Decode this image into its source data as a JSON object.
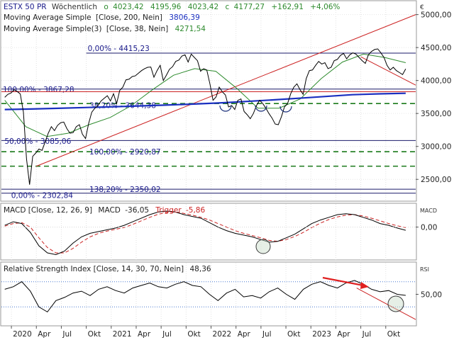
{
  "chart_data": [
    {
      "type": "line",
      "panel": "price",
      "title": "ESTX 50 PR",
      "interval": "Wöchentlich",
      "ohlc": {
        "o_label": "o",
        "o": "4023,42",
        "h": "4195,96",
        "l": "4023,42",
        "c_label": "c",
        "c": "4177,27",
        "change": "+162,91",
        "change_pct": "+4,06%"
      },
      "currency": "€",
      "y_ticks": [
        "5000,00",
        "4500,00",
        "4000,00",
        "3500,00",
        "3000,00",
        "2500,00"
      ],
      "y_tick_values": [
        5000,
        4500,
        4000,
        3500,
        3000,
        2500
      ],
      "ylim": [
        2180,
        5200
      ],
      "x_ticks": [
        "2020",
        "Apr",
        "Jul",
        "Okt",
        "2021",
        "Apr",
        "Jul",
        "Okt",
        "2022",
        "Apr",
        "Jul",
        "Okt",
        "2023",
        "Apr",
        "Jul",
        "Okt"
      ],
      "x_tick_positions": [
        0,
        3,
        6,
        9,
        12,
        15,
        18,
        21,
        24,
        27,
        30,
        33,
        36,
        39,
        42,
        45
      ],
      "xlim": [
        -1.2,
        48.6
      ],
      "series": [
        {
          "name": "ESTX 50 PR",
          "color": "#000000",
          "values": [
            3745,
            3790,
            3810,
            3860,
            3835,
            3795,
            3520,
            2810,
            2420,
            2850,
            2900,
            2960,
            2940,
            3070,
            3200,
            3300,
            3240,
            3320,
            3360,
            3370,
            3270,
            3200,
            3210,
            3300,
            3330,
            3185,
            3120,
            3350,
            3520,
            3580,
            3620,
            3690,
            3730,
            3770,
            3690,
            3800,
            3650,
            3850,
            3900,
            4010,
            4020,
            4060,
            4070,
            4110,
            4150,
            4180,
            4200,
            4205,
            4050,
            4150,
            4230,
            4000,
            4080,
            4170,
            4210,
            4290,
            4310,
            4370,
            4390,
            4280,
            4400,
            4350,
            4300,
            4140,
            4180,
            4160,
            3950,
            3700,
            3750,
            3900,
            3830,
            3780,
            3600,
            3620,
            3560,
            3700,
            3720,
            3530,
            3480,
            3420,
            3500,
            3620,
            3700,
            3650,
            3580,
            3500,
            3430,
            3340,
            3330,
            3450,
            3600,
            3650,
            3800,
            3900,
            3950,
            3860,
            3790,
            4030,
            4150,
            4160,
            4230,
            4290,
            4250,
            4270,
            4180,
            4200,
            4300,
            4320,
            4380,
            4410,
            4330,
            4390,
            4420,
            4400,
            4350,
            4300,
            4260,
            4390,
            4440,
            4470,
            4480,
            4420,
            4350,
            4230,
            4160,
            4200,
            4150,
            4120,
            4090,
            4177
          ]
        },
        {
          "name": "Moving Average Simple",
          "params": "[Close, 200, Nein]",
          "value": "3806,39",
          "color": "#1a2fc0",
          "values": [
            3560,
            3568,
            3578,
            3590,
            3601,
            3614,
            3627,
            3642,
            3659,
            3681,
            3705,
            3731,
            3758,
            3785,
            3798,
            3806
          ]
        },
        {
          "name": "Moving Average Simple(3)",
          "params": "[Close, 38, Nein]",
          "value": "4271,54",
          "color": "#2e8b2e",
          "values": [
            3700,
            3300,
            3150,
            3200,
            3330,
            3440,
            3620,
            3860,
            4080,
            4180,
            4140,
            3880,
            3580,
            3580,
            3720,
            4030,
            4280,
            4400,
            4350,
            4270
          ]
        }
      ],
      "levels": [
        {
          "label": "0,00% - 4415,23",
          "value": 4415.23
        },
        {
          "label": "100,00% - 3867,28",
          "value": 3867.28
        },
        {
          "label": "38,20% - 3644,38",
          "value": 3644.38
        },
        {
          "label": "50,00% - 3085,06",
          "value": 3085.06
        },
        {
          "label": "100,00% - 2920,87",
          "value": 2920.87
        },
        {
          "label": "0,00% - 2302,84",
          "value": 2302.84
        },
        {
          "label": "138,20% - 2350,02",
          "value": 2350.02
        }
      ],
      "support_lines": [
        3650,
        2920,
        2700
      ],
      "horizontal_lines": [
        3870,
        3830,
        3090,
        2350,
        2290
      ],
      "trendlines": [
        {
          "color": "#cc2222",
          "from": [
            3,
            2700
          ],
          "to": [
            48.6,
            5000
          ]
        },
        {
          "color": "#cc2222",
          "from": [
            42,
            4360
          ],
          "to": [
            48.6,
            3930
          ]
        },
        {
          "color": "#cc2222",
          "from": [
            -1.2,
            3830
          ],
          "to": [
            48.6,
            3830
          ]
        }
      ]
    },
    {
      "type": "line",
      "panel": "macd",
      "title": "MACD [Close, 12, 26, 9]",
      "label": "MACD",
      "value": "-36,05",
      "trigger_label": "Trigger",
      "trigger_value": "-5,86",
      "corner_label": "MACD",
      "y_ticks": [
        "0,00"
      ],
      "y_tick_values": [
        0
      ],
      "ylim": [
        -370,
        260
      ],
      "series": [
        {
          "name": "MACD",
          "color": "#000000",
          "values": [
            20,
            60,
            40,
            -60,
            -210,
            -290,
            -310,
            -270,
            -180,
            -110,
            -70,
            -50,
            -30,
            -10,
            20,
            60,
            100,
            140,
            170,
            180,
            170,
            140,
            120,
            100,
            50,
            0,
            -40,
            -70,
            -90,
            -110,
            -140,
            -170,
            -160,
            -120,
            -80,
            -20,
            40,
            80,
            110,
            140,
            150,
            140,
            110,
            80,
            40,
            20,
            -10,
            -36
          ]
        },
        {
          "name": "Trigger",
          "color": "#cc2222",
          "values": [
            10,
            40,
            50,
            0,
            -120,
            -230,
            -290,
            -290,
            -240,
            -170,
            -110,
            -70,
            -45,
            -25,
            -5,
            30,
            70,
            110,
            145,
            165,
            170,
            155,
            135,
            110,
            80,
            40,
            0,
            -40,
            -70,
            -95,
            -120,
            -150,
            -160,
            -140,
            -105,
            -60,
            -5,
            45,
            85,
            115,
            135,
            140,
            125,
            100,
            70,
            40,
            15,
            -6
          ]
        }
      ]
    },
    {
      "type": "line",
      "panel": "rsi",
      "title": "Relative Strength Index [Close, 14, 30, 70, Nein]",
      "value": "48,36",
      "corner_label": "RSI",
      "y_ticks": [
        "50,00"
      ],
      "y_tick_values": [
        50
      ],
      "ylim": [
        0,
        100
      ],
      "levels": [
        30,
        70
      ],
      "series": [
        {
          "name": "Relative Strength Index",
          "color": "#000000",
          "values": [
            58,
            62,
            70,
            55,
            30,
            22,
            40,
            45,
            52,
            55,
            48,
            58,
            62,
            56,
            52,
            60,
            64,
            68,
            62,
            60,
            66,
            70,
            64,
            62,
            50,
            40,
            52,
            58,
            46,
            48,
            44,
            54,
            60,
            50,
            42,
            58,
            66,
            70,
            64,
            60,
            68,
            72,
            66,
            58,
            54,
            56,
            50,
            48.36
          ]
        }
      ]
    }
  ]
}
